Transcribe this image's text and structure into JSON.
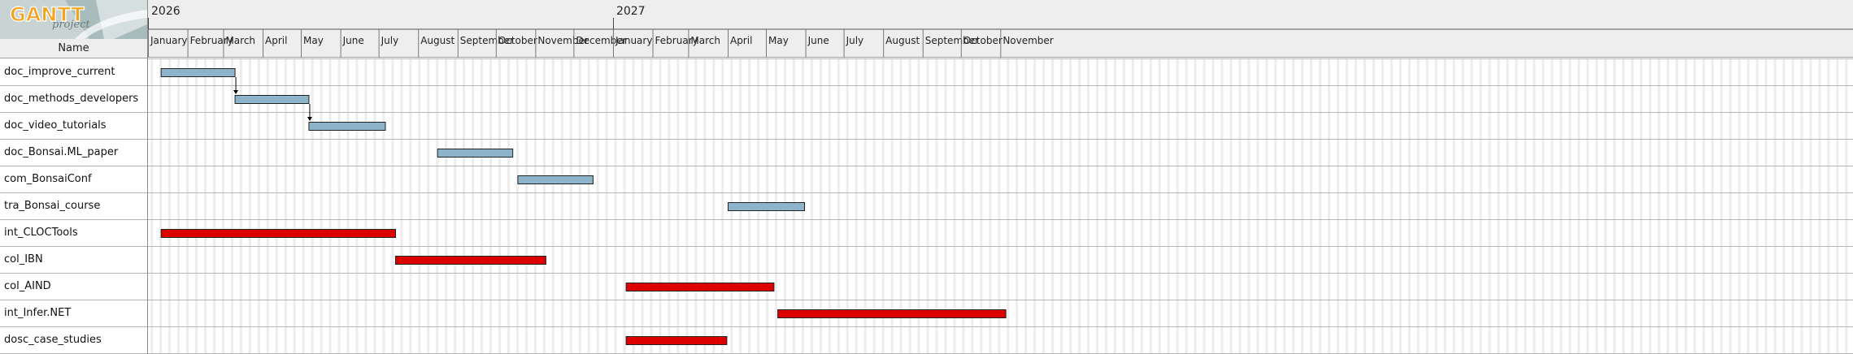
{
  "logo": {
    "brand": "GANTT",
    "sub": "project"
  },
  "table": {
    "name_header": "Name"
  },
  "timeline": {
    "years": [
      "2026",
      "2027"
    ],
    "months": [
      "January",
      "February",
      "March",
      "April",
      "May",
      "June",
      "July",
      "August",
      "September",
      "October",
      "November",
      "December",
      "January",
      "February",
      "March",
      "April",
      "May",
      "June",
      "July",
      "August",
      "September",
      "October",
      "November"
    ]
  },
  "tasks": [
    {
      "name": "doc_improve_current",
      "start": "2026-01-11",
      "end": "2026-03-10",
      "color": "#8eb4cc"
    },
    {
      "name": "doc_methods_developers",
      "start": "2026-03-10",
      "end": "2026-05-07",
      "color": "#8eb4cc"
    },
    {
      "name": "doc_video_tutorials",
      "start": "2026-05-07",
      "end": "2026-07-06",
      "color": "#8eb4cc"
    },
    {
      "name": "doc_Bonsai.ML_paper",
      "start": "2026-08-16",
      "end": "2026-10-14",
      "color": "#8eb4cc"
    },
    {
      "name": "com_BonsaiConf",
      "start": "2026-10-18",
      "end": "2026-12-16",
      "color": "#8eb4cc"
    },
    {
      "name": "tra_Bonsai_course",
      "start": "2027-04-01",
      "end": "2027-05-31",
      "color": "#8eb4cc"
    },
    {
      "name": "int_CLOCTools",
      "start": "2026-01-11",
      "end": "2026-07-14",
      "color": "#dd0000"
    },
    {
      "name": "col_IBN",
      "start": "2026-07-14",
      "end": "2026-11-09",
      "color": "#dd0000"
    },
    {
      "name": "col_AIND",
      "start": "2027-01-11",
      "end": "2027-05-07",
      "color": "#dd0000"
    },
    {
      "name": "int_Infer.NET",
      "start": "2027-05-10",
      "end": "2027-11-05",
      "color": "#dd0000"
    },
    {
      "name": "dosc_case_studies",
      "start": "2027-01-11",
      "end": "2027-03-31",
      "color": "#dd0000"
    }
  ],
  "dependencies": [
    {
      "from": "doc_improve_current",
      "to": "doc_methods_developers"
    },
    {
      "from": "doc_methods_developers",
      "to": "doc_video_tutorials"
    }
  ],
  "colors": {
    "header_bg": "#eeeeee",
    "weekend_shade": "#ededed",
    "task_blue": "#8eb4cc",
    "task_red": "#dd0000"
  }
}
